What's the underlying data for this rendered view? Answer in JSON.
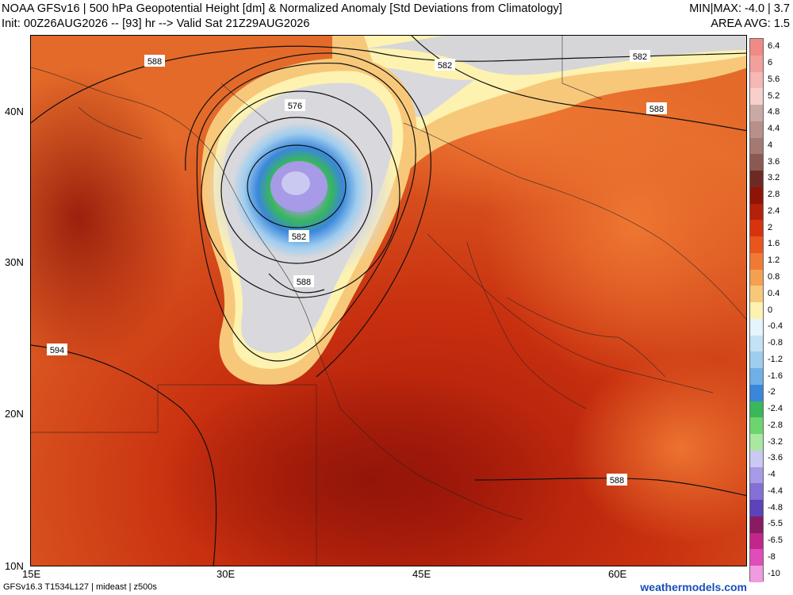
{
  "header": {
    "line1": "NOAA GFSv16 | 500 hPa Geopotential Height [dm] & Normalized Anomaly [Std Deviations from Climatology]",
    "minmax": "MIN|MAX: -4.0 | 3.7",
    "line2": "Init: 00Z26AUG2026 -- [93] hr --> Valid Sat 21Z29AUG2026",
    "area_avg": "AREA AVG: 1.5"
  },
  "axes": {
    "lat_labels": [
      "40N",
      "30N",
      "20N",
      "10N"
    ],
    "lon_labels": [
      "15E",
      "30E",
      "45E",
      "60E"
    ]
  },
  "contour_labels": [
    {
      "text": "588",
      "id": "588-nw"
    },
    {
      "text": "582",
      "id": "582-n"
    },
    {
      "text": "582",
      "id": "582-ne"
    },
    {
      "text": "588",
      "id": "588-ne"
    },
    {
      "text": "576",
      "id": "576-low"
    },
    {
      "text": "582",
      "id": "582-low"
    },
    {
      "text": "588",
      "id": "588-low"
    },
    {
      "text": "594",
      "id": "594-w"
    },
    {
      "text": "588",
      "id": "588-se"
    }
  ],
  "legend": {
    "labels": [
      "6.4",
      "6",
      "5.6",
      "5.2",
      "4.8",
      "4.4",
      "4",
      "3.6",
      "3.2",
      "2.8",
      "2.4",
      "2",
      "1.6",
      "1.2",
      "0.8",
      "0.4",
      "0",
      "-0.4",
      "-0.8",
      "-1.2",
      "-1.6",
      "-2",
      "-2.4",
      "-2.8",
      "-3.2",
      "-3.6",
      "-4",
      "-4.4",
      "-4.8",
      "-5.5",
      "-6.5",
      "-8",
      "-10"
    ],
    "colors": [
      "#f08a86",
      "#f2a09c",
      "#f5b8b4",
      "#f7d0cc",
      "#c8a9a4",
      "#b79089",
      "#a37a73",
      "#8a5a52",
      "#6e2a22",
      "#8f1408",
      "#b3200c",
      "#d8330f",
      "#e8561e",
      "#f07a34",
      "#f59f50",
      "#f8c87a",
      "#fdf2b0",
      "#e6f4fb",
      "#c4e2f5",
      "#9fcdef",
      "#6fb0e7",
      "#3a86da",
      "#38b85a",
      "#6ed46f",
      "#a8e8a0",
      "#c9c9f2",
      "#a79ae6",
      "#8470d6",
      "#5c43b8",
      "#8a1a62",
      "#c2268a",
      "#e04cba",
      "#f09ae0"
    ]
  },
  "footer": {
    "left": "GFSv16.3 T1534L127 | mideast | z500s",
    "right": "weathermodels.com"
  }
}
